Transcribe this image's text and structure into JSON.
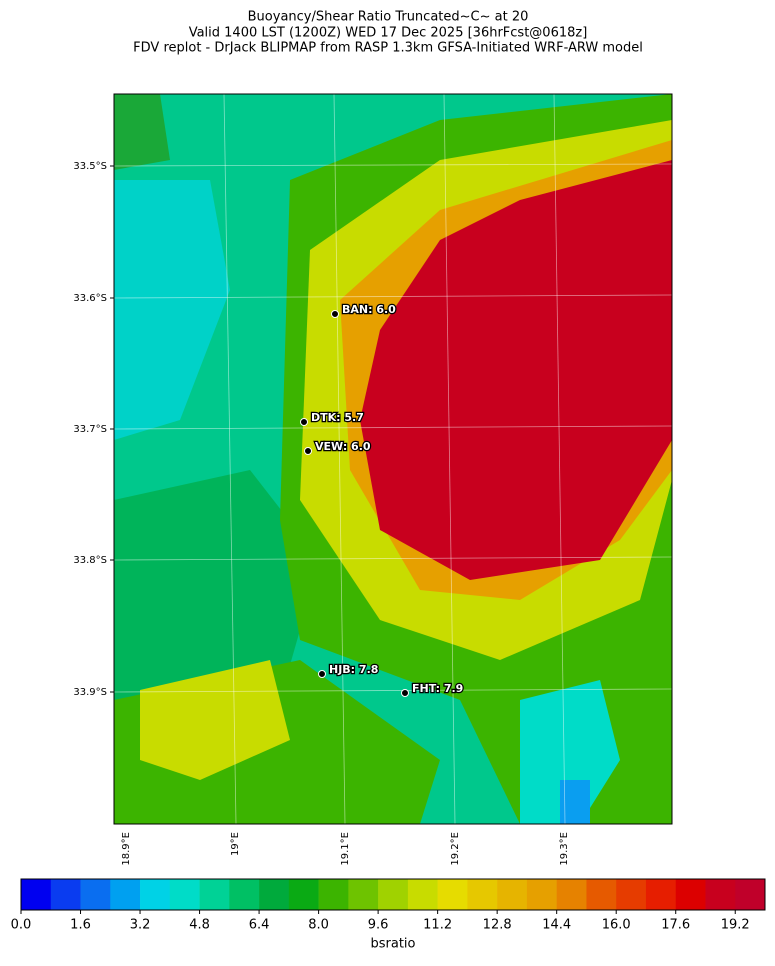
{
  "header": {
    "lines": [
      "Buoyancy/Shear Ratio Truncated~C~    at 20",
      "Valid 1400 LST (1200Z) WED 17 Dec 2025 [36hrFcst@0618z]",
      "FDV replot - DrJack BLIPMAP from RASP 1.3km GFSA-Initiated WRF-ARW model"
    ]
  },
  "map": {
    "lat_labels": [
      "33.5°S",
      "33.6°S",
      "33.7°S",
      "33.8°S",
      "33.9°S"
    ],
    "lon_labels": [
      "18.9°E",
      "19°E",
      "19.1°E",
      "19.2°E",
      "19.3°E"
    ],
    "stations": [
      "BAN: 6.0",
      "DTK: 5.7",
      "VEW: 6.0",
      "HJB: 7.8",
      "FHT: 7.9"
    ]
  },
  "colorbar": {
    "label": "bsratio",
    "lim": [
      0,
      20
    ],
    "ticks": [
      {
        "value": 0,
        "label": "0.0"
      },
      1.6,
      3.2,
      4.8,
      6.4,
      {
        "value": 8,
        "label": "8.0"
      },
      9.6,
      11.2,
      12.8,
      14.4,
      {
        "value": 16,
        "label": "16.0"
      },
      17.6,
      19.2
    ],
    "colors": [
      "#0000f0",
      "#0a3cf0",
      "#0a6ef0",
      "#00a0f0",
      "#00d2e6",
      "#00dcc8",
      "#00d296",
      "#00c064",
      "#00aa3c",
      "#0aaa14",
      "#3cb400",
      "#6ec300",
      "#a0d200",
      "#c8dc00",
      "#e6dc00",
      "#e6c800",
      "#e6b400",
      "#e6a000",
      "#e68200",
      "#e65a00",
      "#e63c00",
      "#e61e00",
      "#dc0000",
      "#c8001e",
      "#c0002a"
    ]
  }
}
